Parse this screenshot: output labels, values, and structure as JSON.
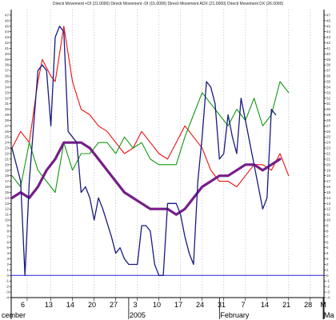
{
  "chart_data": {
    "type": "line",
    "title": "Directi Movement +DI (21.0000) Directi Movement -DI (15.0000) Directi Movement ADX (21.0000) Directi Movement DX (26.0000)",
    "xlabel": "",
    "ylabel": "",
    "ylim": [
      -4,
      48
    ],
    "yticks": [
      -4,
      -3,
      -2,
      -1,
      0,
      1,
      2,
      3,
      4,
      5,
      6,
      7,
      8,
      9,
      10,
      11,
      12,
      13,
      14,
      15,
      16,
      17,
      18,
      19,
      20,
      21,
      22,
      23,
      24,
      25,
      26,
      27,
      28,
      29,
      30,
      31,
      32,
      33,
      34,
      35,
      36,
      37,
      38,
      39,
      40,
      41,
      42,
      43,
      44,
      45,
      46,
      47
    ],
    "x_day_labels": [
      "6",
      "13",
      "14",
      "20",
      "27",
      "3",
      "10",
      "17",
      "24",
      "31",
      "7",
      "14",
      "21",
      "28",
      "M"
    ],
    "x_label_index": [
      2.5,
      8.5,
      13.5,
      18.5,
      23.5,
      28.5,
      33.5,
      38.5,
      43.5,
      48.5,
      53.5,
      58.5,
      63.5,
      68.5,
      72
    ],
    "x_month_labels": [
      {
        "label": "cember",
        "index": 0
      },
      {
        "label": "2005",
        "index": 27
      },
      {
        "label": "February",
        "index": 48
      },
      {
        "label": "Ma",
        "index": 72
      }
    ],
    "x_grid_index": [
      3.5,
      9,
      14,
      19,
      24,
      29,
      34,
      39,
      44,
      49,
      54,
      59,
      64,
      69
    ],
    "baseline": 0,
    "x_count": 73,
    "colors": {
      "plus_di": "#ee1111",
      "minus_di": "#119911",
      "adx": "#771e88",
      "dx": "#1a1a80",
      "baseline": "#2222ee",
      "grid": "#c8c8c8"
    },
    "series": [
      {
        "key": "plus_di",
        "points": [
          [
            0,
            23
          ],
          [
            2,
            26
          ],
          [
            4,
            24
          ],
          [
            6,
            35
          ],
          [
            7,
            39
          ],
          [
            9,
            36
          ],
          [
            10,
            35
          ],
          [
            12,
            45
          ],
          [
            14,
            35
          ],
          [
            16,
            30
          ],
          [
            18,
            29
          ],
          [
            20,
            27
          ],
          [
            22,
            26
          ],
          [
            24,
            24
          ],
          [
            26,
            22
          ],
          [
            28,
            23
          ],
          [
            30,
            26
          ],
          [
            32,
            24
          ],
          [
            34,
            22
          ],
          [
            36,
            21
          ],
          [
            38,
            24
          ],
          [
            40,
            27
          ],
          [
            42,
            25
          ],
          [
            44,
            23
          ],
          [
            46,
            19
          ],
          [
            48,
            17
          ],
          [
            50,
            17
          ],
          [
            52,
            16
          ],
          [
            54,
            18
          ],
          [
            56,
            20
          ],
          [
            58,
            20
          ],
          [
            60,
            19
          ],
          [
            62,
            22
          ],
          [
            64,
            18
          ]
        ]
      },
      {
        "key": "minus_di",
        "points": [
          [
            0,
            18
          ],
          [
            2,
            16
          ],
          [
            4,
            24
          ],
          [
            6,
            19
          ],
          [
            8,
            17
          ],
          [
            10,
            15
          ],
          [
            12,
            24
          ],
          [
            14,
            19
          ],
          [
            16,
            22
          ],
          [
            18,
            22
          ],
          [
            20,
            24
          ],
          [
            22,
            24
          ],
          [
            24,
            22
          ],
          [
            26,
            25
          ],
          [
            28,
            23
          ],
          [
            30,
            24
          ],
          [
            32,
            21
          ],
          [
            34,
            20
          ],
          [
            36,
            20
          ],
          [
            38,
            20
          ],
          [
            40,
            25
          ],
          [
            42,
            29
          ],
          [
            44,
            33
          ],
          [
            46,
            31
          ],
          [
            48,
            29
          ],
          [
            50,
            27
          ],
          [
            52,
            30
          ],
          [
            54,
            28
          ],
          [
            56,
            32
          ],
          [
            58,
            27
          ],
          [
            60,
            29
          ],
          [
            62,
            35
          ],
          [
            64,
            33
          ]
        ]
      },
      {
        "key": "adx",
        "points": [
          [
            0,
            14
          ],
          [
            2,
            15
          ],
          [
            4,
            14
          ],
          [
            6,
            16
          ],
          [
            8,
            19
          ],
          [
            10,
            21
          ],
          [
            12,
            24
          ],
          [
            14,
            24
          ],
          [
            16,
            24
          ],
          [
            18,
            23
          ],
          [
            20,
            21
          ],
          [
            22,
            19
          ],
          [
            24,
            17
          ],
          [
            26,
            15
          ],
          [
            28,
            14
          ],
          [
            30,
            13
          ],
          [
            32,
            12
          ],
          [
            34,
            12
          ],
          [
            36,
            12
          ],
          [
            38,
            11
          ],
          [
            40,
            12
          ],
          [
            42,
            14
          ],
          [
            44,
            16
          ],
          [
            46,
            17
          ],
          [
            48,
            18
          ],
          [
            50,
            18
          ],
          [
            52,
            19
          ],
          [
            54,
            20
          ],
          [
            56,
            20
          ],
          [
            58,
            19
          ],
          [
            60,
            20
          ],
          [
            62,
            21
          ]
        ]
      },
      {
        "key": "dx",
        "points": [
          [
            0,
            23
          ],
          [
            2,
            17
          ],
          [
            3,
            0
          ],
          [
            4,
            17
          ],
          [
            6,
            37
          ],
          [
            7,
            38
          ],
          [
            8,
            37
          ],
          [
            9,
            27
          ],
          [
            10,
            43
          ],
          [
            11,
            45
          ],
          [
            12,
            44
          ],
          [
            13,
            26
          ],
          [
            15,
            24
          ],
          [
            16,
            15
          ],
          [
            17,
            16
          ],
          [
            18,
            14
          ],
          [
            19,
            10
          ],
          [
            20,
            14
          ],
          [
            21,
            12
          ],
          [
            23,
            7
          ],
          [
            24,
            4
          ],
          [
            25,
            5
          ],
          [
            26,
            3
          ],
          [
            27,
            2
          ],
          [
            28,
            2
          ],
          [
            29,
            2
          ],
          [
            30,
            9
          ],
          [
            31,
            9
          ],
          [
            32,
            8
          ],
          [
            33,
            2
          ],
          [
            34,
            0
          ],
          [
            35,
            0
          ],
          [
            36,
            13
          ],
          [
            37,
            13
          ],
          [
            38,
            13
          ],
          [
            39,
            11
          ],
          [
            40,
            7
          ],
          [
            41,
            4
          ],
          [
            42,
            2
          ],
          [
            43,
            17
          ],
          [
            44,
            25
          ],
          [
            45,
            35
          ],
          [
            46,
            34
          ],
          [
            47,
            31
          ],
          [
            48,
            21
          ],
          [
            49,
            22
          ],
          [
            50,
            29
          ],
          [
            51,
            25
          ],
          [
            52,
            22
          ],
          [
            53,
            32
          ],
          [
            54,
            28
          ],
          [
            55,
            24
          ],
          [
            56,
            20
          ],
          [
            57,
            16
          ],
          [
            58,
            12
          ],
          [
            59,
            14
          ],
          [
            60,
            30
          ],
          [
            61,
            29
          ]
        ]
      }
    ]
  }
}
